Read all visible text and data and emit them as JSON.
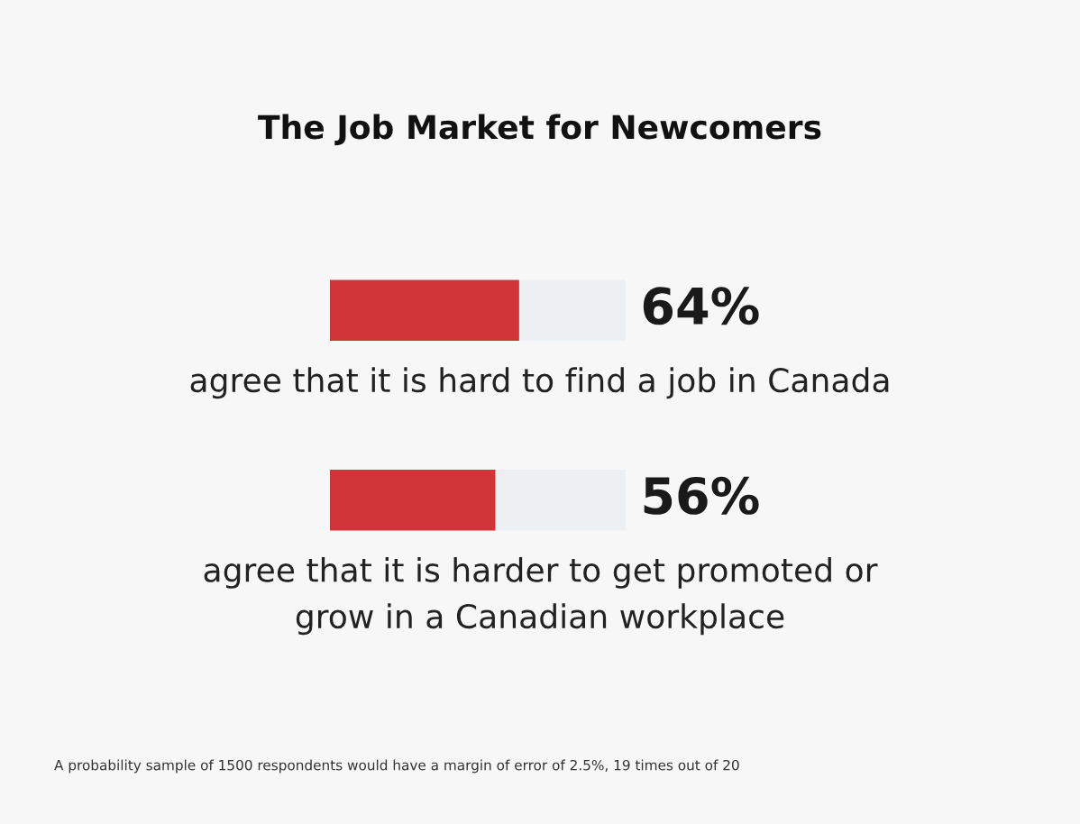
{
  "chart_data": {
    "type": "bar",
    "title": "The Job Market for Newcomers",
    "categories": [
      "agree that it is hard to find a job in Canada",
      "agree that it is harder to get promoted or\ngrow in a Canadian workplace"
    ],
    "orientation": "horizontal",
    "stacked": true,
    "xlim": [
      0,
      100
    ],
    "tick_labels": false,
    "series": [
      {
        "color": "#d13438",
        "values": [
          64,
          56
        ],
        "value_labels": [
          "64%",
          "56%"
        ]
      },
      {
        "color": "#edf0f3",
        "values": [
          36,
          44
        ]
      }
    ],
    "annotations": [
      "A probability sample of 1500 respondents would have a margin of error of 2.5%, 19 times out of 20"
    ]
  }
}
